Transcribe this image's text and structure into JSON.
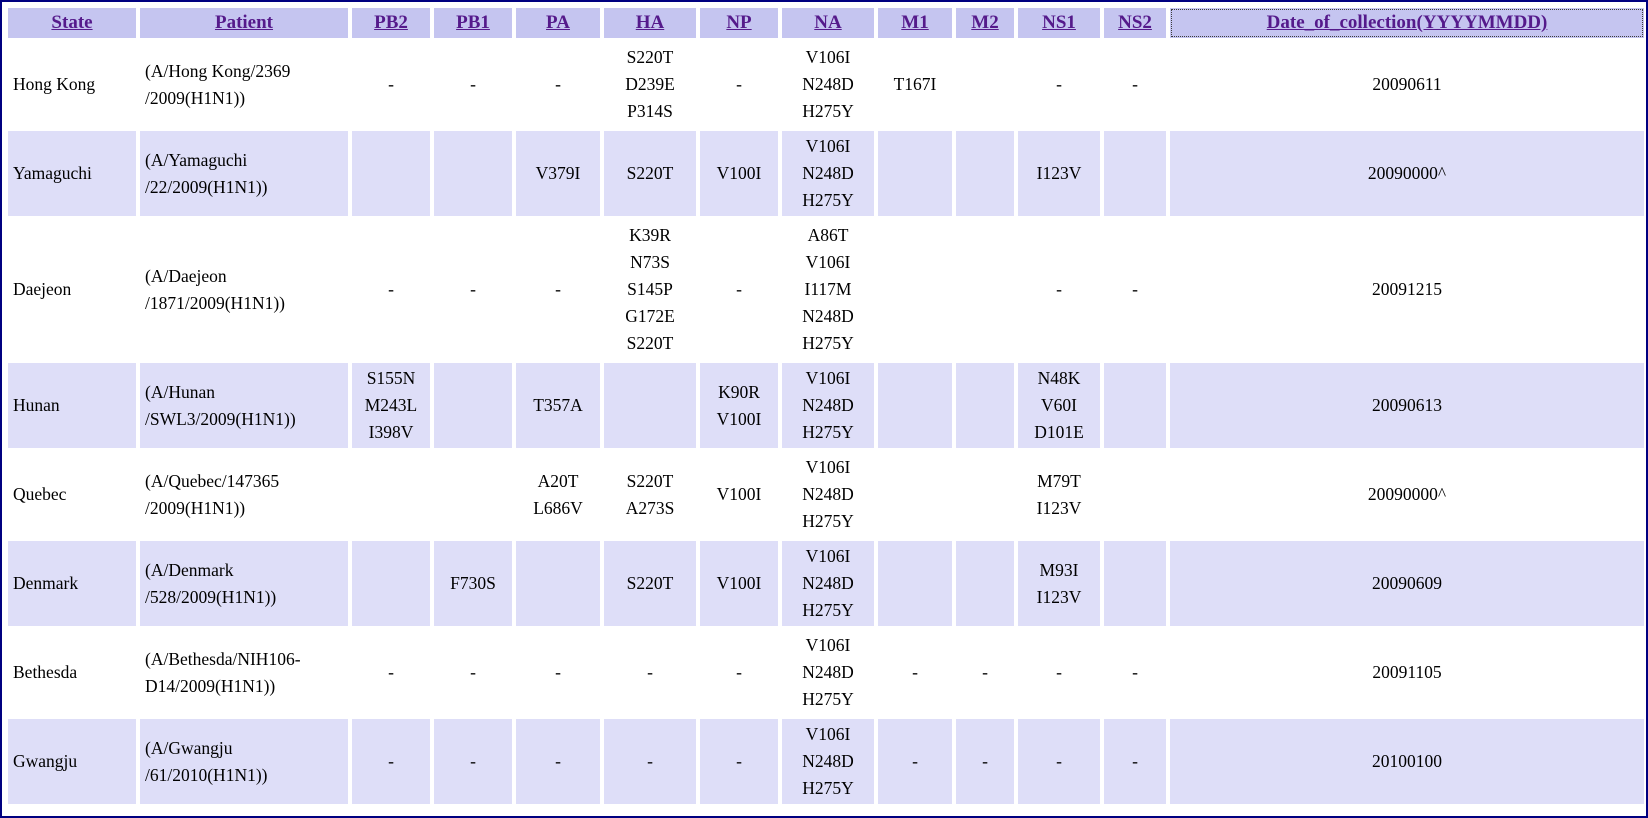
{
  "colors": {
    "frame_border": "#000080",
    "header_bg": "#c5c5f0",
    "alt_row_bg": "#dedef8",
    "header_link_color": "#551a8b",
    "body_text_color": "#000000"
  },
  "table": {
    "focused_column": "date",
    "columns": [
      {
        "key": "state",
        "label": "State"
      },
      {
        "key": "patient",
        "label": "Patient"
      },
      {
        "key": "pb2",
        "label": "PB2"
      },
      {
        "key": "pb1",
        "label": "PB1"
      },
      {
        "key": "pa",
        "label": "PA"
      },
      {
        "key": "ha",
        "label": "HA"
      },
      {
        "key": "np",
        "label": "NP"
      },
      {
        "key": "na",
        "label": "NA"
      },
      {
        "key": "m1",
        "label": "M1"
      },
      {
        "key": "m2",
        "label": "M2"
      },
      {
        "key": "ns1",
        "label": "NS1"
      },
      {
        "key": "ns2",
        "label": "NS2"
      },
      {
        "key": "date",
        "label": "Date_of_collection(YYYYMMDD)"
      }
    ],
    "rows": [
      {
        "state": "Hong Kong",
        "patient": [
          "(A/Hong Kong/2369",
          "/2009(H1N1))"
        ],
        "pb2": "-",
        "pb1": "-",
        "pa": "-",
        "ha": [
          "S220T",
          "D239E",
          "P314S"
        ],
        "np": "-",
        "na": [
          "V106I",
          "N248D",
          "H275Y"
        ],
        "m1": "T167I",
        "m2": "",
        "ns1": "-",
        "ns2": "-",
        "date": "20090611"
      },
      {
        "state": "Yamaguchi",
        "patient": [
          "(A/Yamaguchi",
          "/22/2009(H1N1))"
        ],
        "pb2": "",
        "pb1": "",
        "pa": "V379I",
        "ha": "S220T",
        "np": "V100I",
        "na": [
          "V106I",
          "N248D",
          "H275Y"
        ],
        "m1": "",
        "m2": "",
        "ns1": "I123V",
        "ns2": "",
        "date": "20090000^"
      },
      {
        "state": "Daejeon",
        "patient": [
          "(A/Daejeon",
          "/1871/2009(H1N1))"
        ],
        "pb2": "-",
        "pb1": "-",
        "pa": "-",
        "ha": [
          "K39R",
          "N73S",
          "S145P",
          "G172E",
          "S220T"
        ],
        "np": "-",
        "na": [
          "A86T",
          "V106I",
          "I117M",
          "N248D",
          "H275Y"
        ],
        "m1": "",
        "m2": "",
        "ns1": "-",
        "ns2": "-",
        "date": "20091215"
      },
      {
        "state": "Hunan",
        "patient": [
          "(A/Hunan",
          "/SWL3/2009(H1N1))"
        ],
        "pb2": [
          "S155N",
          "M243L",
          "I398V"
        ],
        "pb1": "",
        "pa": "T357A",
        "ha": "",
        "np": [
          "K90R",
          "V100I"
        ],
        "na": [
          "V106I",
          "N248D",
          "H275Y"
        ],
        "m1": "",
        "m2": "",
        "ns1": [
          "N48K",
          "V60I",
          "D101E"
        ],
        "ns2": "",
        "date": "20090613"
      },
      {
        "state": "Quebec",
        "patient": [
          "(A/Quebec/147365",
          "/2009(H1N1))"
        ],
        "pb2": "",
        "pb1": "",
        "pa": [
          "A20T",
          "L686V"
        ],
        "ha": [
          "S220T",
          "A273S"
        ],
        "np": "V100I",
        "na": [
          "V106I",
          "N248D",
          "H275Y"
        ],
        "m1": "",
        "m2": "",
        "ns1": [
          "M79T",
          "I123V"
        ],
        "ns2": "",
        "date": "20090000^"
      },
      {
        "state": "Denmark",
        "patient": [
          "(A/Denmark",
          "/528/2009(H1N1))"
        ],
        "pb2": "",
        "pb1": "F730S",
        "pa": "",
        "ha": "S220T",
        "np": "V100I",
        "na": [
          "V106I",
          "N248D",
          "H275Y"
        ],
        "m1": "",
        "m2": "",
        "ns1": [
          "M93I",
          "I123V"
        ],
        "ns2": "",
        "date": "20090609"
      },
      {
        "state": "Bethesda",
        "patient": [
          "(A/Bethesda/NIH106-",
          "D14/2009(H1N1))"
        ],
        "pb2": "-",
        "pb1": "-",
        "pa": "-",
        "ha": "-",
        "np": "-",
        "na": [
          "V106I",
          "N248D",
          "H275Y"
        ],
        "m1": "-",
        "m2": "-",
        "ns1": "-",
        "ns2": "-",
        "date": "20091105"
      },
      {
        "state": "Gwangju",
        "patient": [
          "(A/Gwangju",
          "/61/2010(H1N1))"
        ],
        "pb2": "-",
        "pb1": "-",
        "pa": "-",
        "ha": "-",
        "np": "-",
        "na": [
          "V106I",
          "N248D",
          "H275Y"
        ],
        "m1": "-",
        "m2": "-",
        "ns1": "-",
        "ns2": "-",
        "date": "20100100"
      }
    ]
  }
}
